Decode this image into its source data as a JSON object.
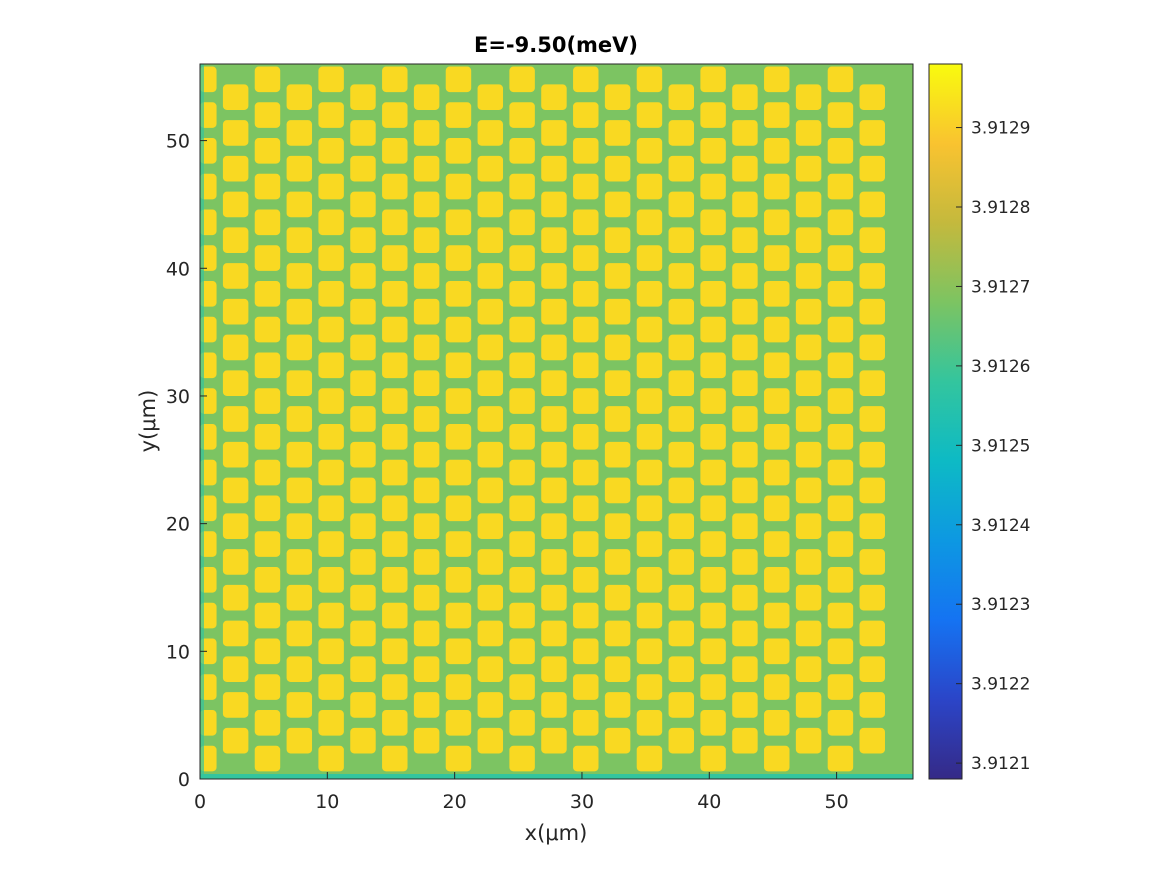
{
  "chart_data": {
    "type": "heatmap",
    "title": "E=-9.50(meV)",
    "xlabel": "x(μm)",
    "ylabel": "y(μm)",
    "xlim": [
      0,
      56
    ],
    "ylim": [
      0,
      56
    ],
    "x_ticks": [
      0,
      10,
      20,
      30,
      40,
      50
    ],
    "y_ticks": [
      0,
      10,
      20,
      30,
      40,
      50
    ],
    "x_tick_labels": [
      "0",
      "10",
      "20",
      "30",
      "40",
      "50"
    ],
    "y_tick_labels": [
      "0",
      "10",
      "20",
      "30",
      "40",
      "50"
    ],
    "grid": false,
    "colormap": "parula",
    "clim": [
      3.91208,
      3.91298
    ],
    "colorbar": {
      "ticks": [
        3.9121,
        3.9122,
        3.9123,
        3.9124,
        3.9125,
        3.9126,
        3.9127,
        3.9128,
        3.9129
      ],
      "tick_labels": [
        "3.9121",
        "3.9122",
        "3.9123",
        "3.9124",
        "3.9125",
        "3.9126",
        "3.9127",
        "3.9128",
        "3.9129"
      ]
    },
    "pattern": {
      "background_value": 3.91268,
      "spot_value": 3.91292,
      "edge_value": 3.91258,
      "column_pitch": 2.5,
      "row_pitch": 2.8,
      "lattice_period_x": 10,
      "lattice_period_y": 11.2
    }
  },
  "colors": {
    "parula": [
      "#352a87",
      "#2b45c8",
      "#1573f2",
      "#0d98e2",
      "#0dbac5",
      "#33c59e",
      "#7cc462",
      "#c4b93d",
      "#f9c330",
      "#f9fb0e"
    ]
  }
}
